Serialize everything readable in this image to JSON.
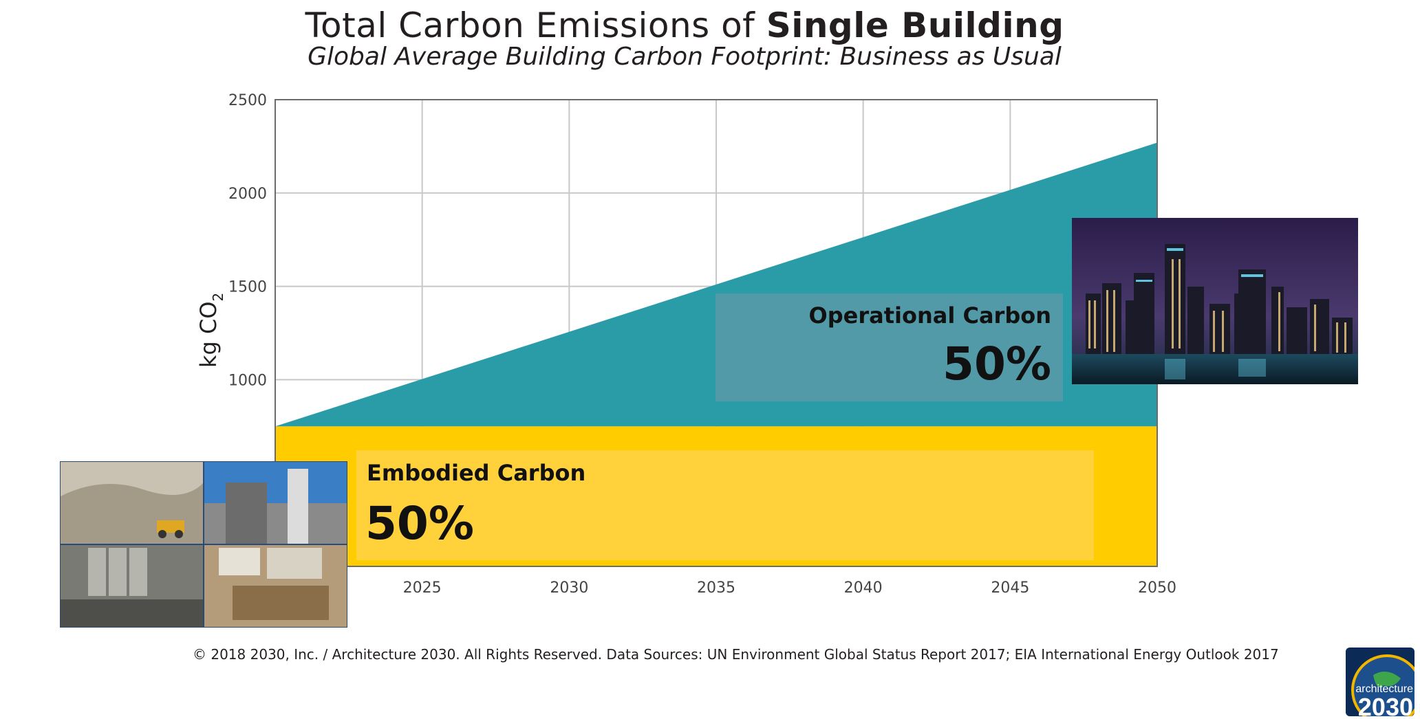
{
  "header": {
    "title_prefix": "Total Carbon Emissions of ",
    "title_bold": "Single Building",
    "subtitle": "Global Average Building Carbon Footprint: Business as Usual"
  },
  "chart_data": {
    "type": "area",
    "title": "Total Carbon Emissions of Single Building",
    "subtitle": "Global Average Building Carbon Footprint: Business as Usual",
    "xlabel": "",
    "ylabel": "kg CO2",
    "ylabel_main": "kg CO",
    "ylabel_sub": "2",
    "x_range": [
      2020,
      2050
    ],
    "ylim": [
      0,
      2500
    ],
    "xticks": [
      2025,
      2030,
      2035,
      2040,
      2045,
      2050
    ],
    "yticks": [
      1000,
      1500,
      2000,
      2500
    ],
    "grid": true,
    "series": [
      {
        "name": "Embodied Carbon",
        "x": [
          2020,
          2050
        ],
        "values": [
          750,
          750
        ],
        "color": "#ffcc00",
        "share_label": "50%"
      },
      {
        "name": "Operational Carbon",
        "x": [
          2020,
          2050
        ],
        "values": [
          750,
          2270
        ],
        "color": "#2a9ca7",
        "share_label": "50%"
      }
    ]
  },
  "labels": {
    "operational_title": "Operational Carbon",
    "operational_pct": "50%",
    "embodied_title": "Embodied Carbon",
    "embodied_pct": "50%"
  },
  "footer": {
    "text": "© 2018 2030, Inc. / Architecture 2030. All Rights Reserved. Data Sources: UN Environment Global Status Report 2017; EIA International Energy Outlook 2017"
  },
  "logo": {
    "line1": "architecture",
    "line2": "2030"
  }
}
